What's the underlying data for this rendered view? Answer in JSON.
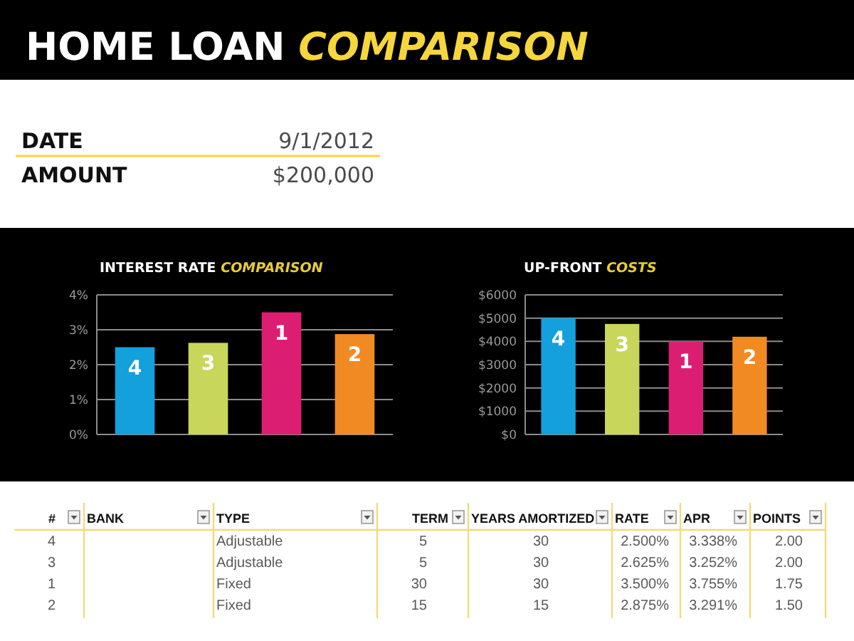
{
  "chart_data": [
    {
      "type": "other",
      "title": "HOME LOAN COMPARISON",
      "annotations": [
        "DATE",
        "9/1/2012",
        "AMOUNT",
        "$200,000"
      ]
    },
    {
      "type": "bar",
      "title": "INTEREST RATE COMPARISON",
      "categories": [
        "4",
        "3",
        "1",
        "2"
      ],
      "values": [
        2.5,
        2.625,
        3.5,
        2.875
      ],
      "colors": [
        "#14a0dc",
        "#c8d65b",
        "#dc1e73",
        "#f28a24"
      ],
      "ylim": [
        0,
        4
      ],
      "yticks": [
        {
          "value": 0,
          "label": "0%"
        },
        {
          "value": 1,
          "label": "1%"
        },
        {
          "value": 2,
          "label": "2%"
        },
        {
          "value": 3,
          "label": "3%"
        },
        {
          "value": 4,
          "label": "4%"
        }
      ],
      "grid": "y"
    },
    {
      "type": "bar",
      "title": "UP-FRONT COSTS",
      "categories": [
        "4",
        "3",
        "1",
        "2"
      ],
      "values": [
        5000,
        4750,
        4000,
        4200
      ],
      "colors": [
        "#14a0dc",
        "#c8d65b",
        "#dc1e73",
        "#f28a24"
      ],
      "ylim": [
        0,
        6000
      ],
      "yticks": [
        {
          "value": 0,
          "label": "$0"
        },
        {
          "value": 1000,
          "label": "$1000"
        },
        {
          "value": 2000,
          "label": "$2000"
        },
        {
          "value": 3000,
          "label": "$3000"
        },
        {
          "value": 4000,
          "label": "$4000"
        },
        {
          "value": 5000,
          "label": "$5000"
        },
        {
          "value": 6000,
          "label": "$6000"
        }
      ],
      "grid": "y"
    },
    {
      "type": "other",
      "categories": [
        "#",
        "BANK",
        "TYPE",
        "TERM",
        "YEARS AMORTIZED",
        "RATE",
        "APR",
        "POINTS"
      ],
      "cell_labels": [
        [
          "4",
          null,
          "Adjustable",
          "5",
          "30",
          "2.500%",
          "3.338%",
          "2.00"
        ],
        [
          "3",
          null,
          "Adjustable",
          "5",
          "30",
          "2.625%",
          "3.252%",
          "2.00"
        ],
        [
          "1",
          null,
          "Fixed",
          "30",
          "30",
          "3.500%",
          "3.755%",
          "1.75"
        ],
        [
          "2",
          null,
          "Fixed",
          "15",
          "15",
          "2.875%",
          "3.291%",
          "1.50"
        ]
      ]
    }
  ]
}
